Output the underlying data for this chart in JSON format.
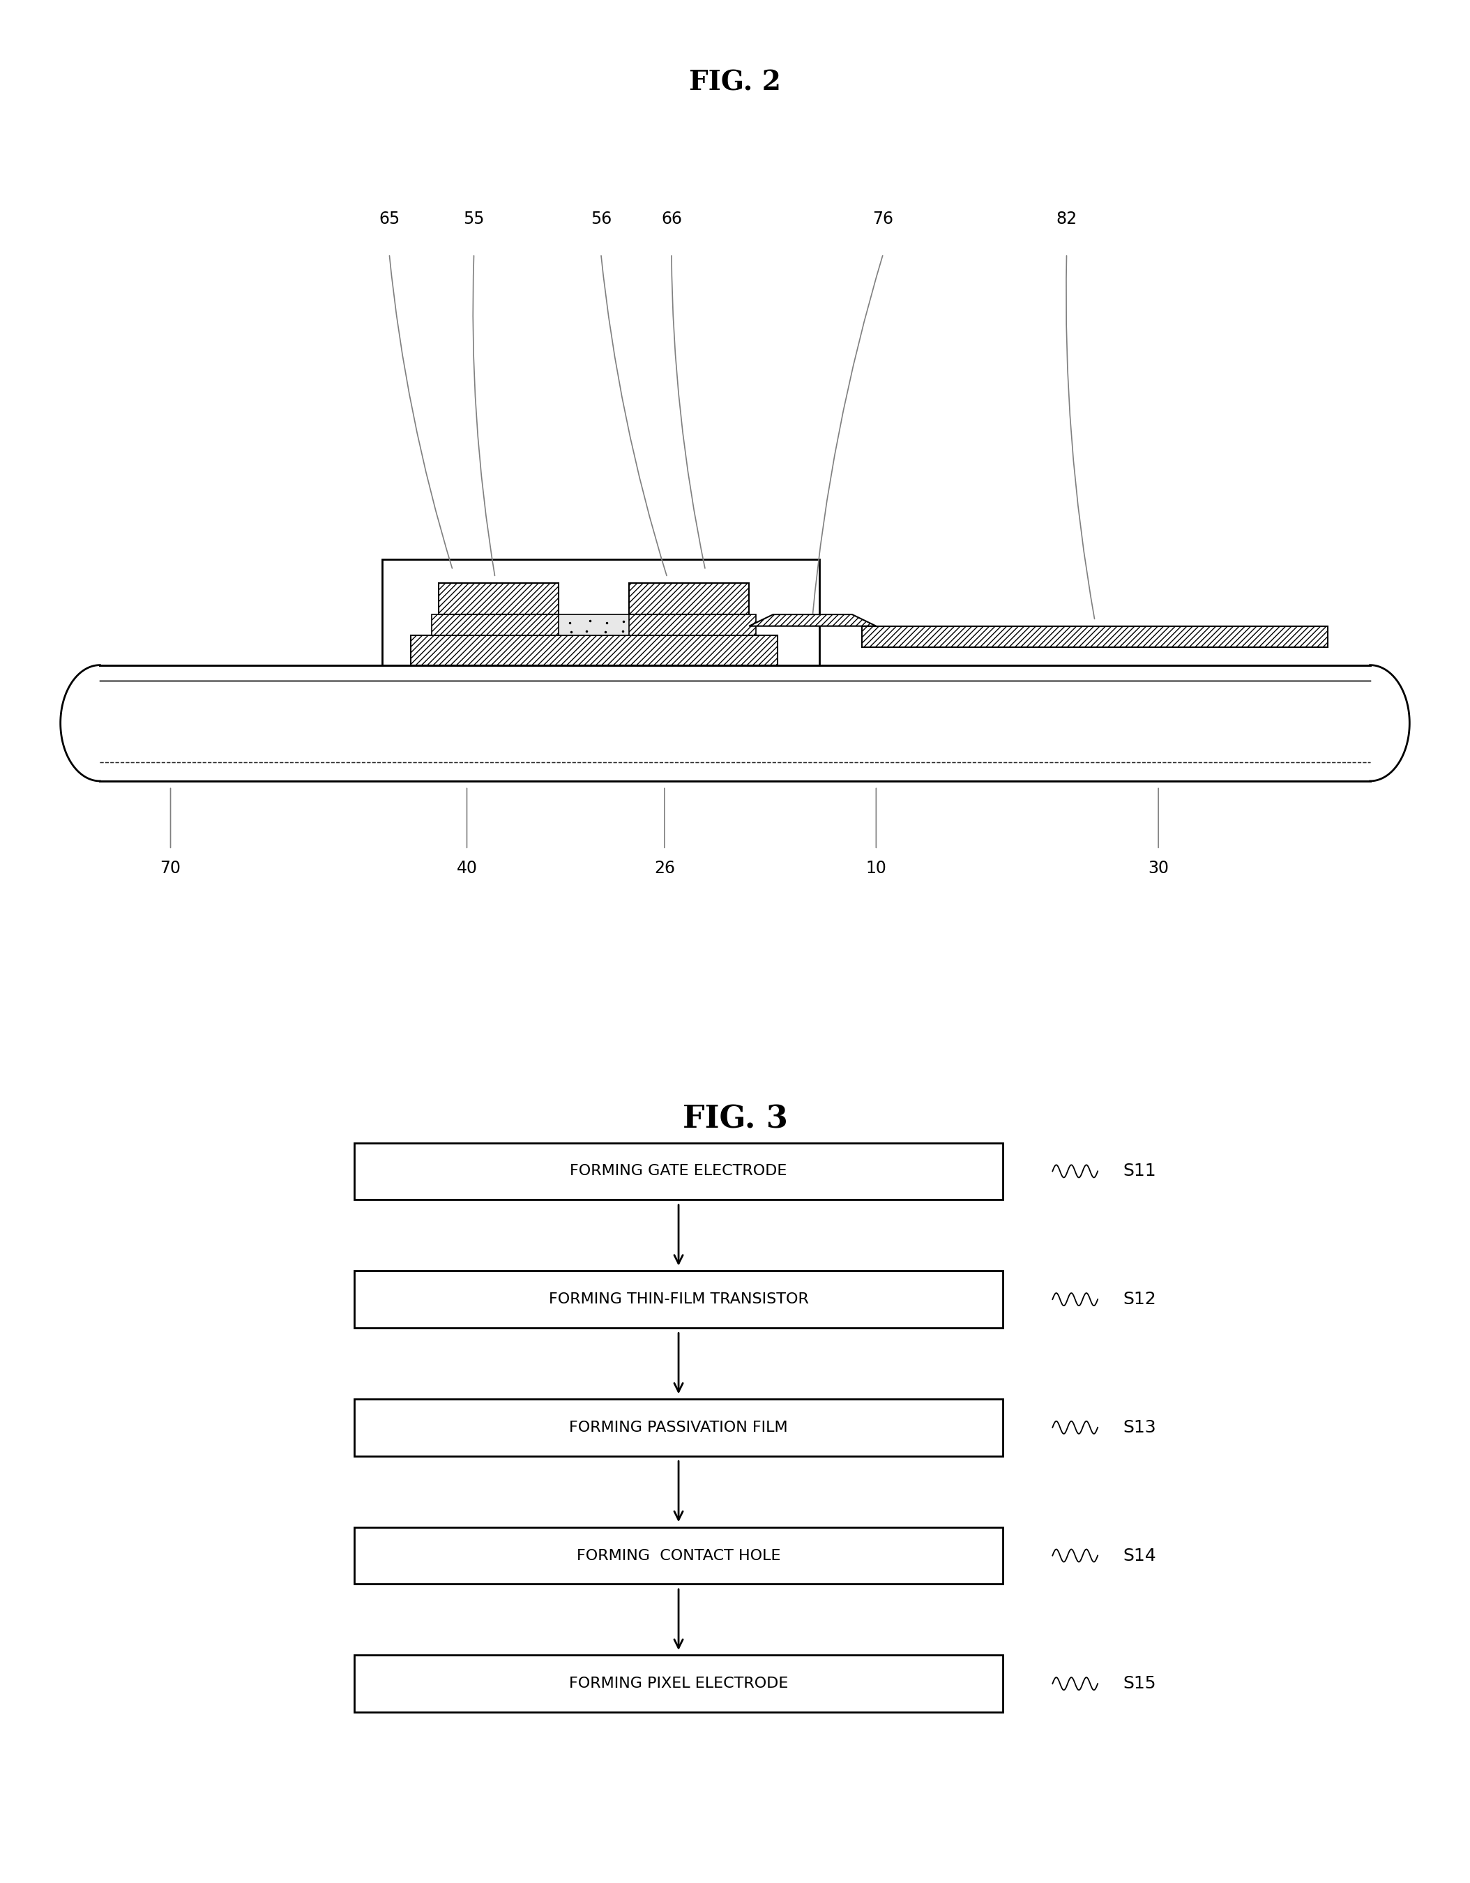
{
  "fig2_title": "FIG. 2",
  "fig3_title": "FIG. 3",
  "background_color": "#ffffff",
  "flow_steps": [
    {
      "label": "FORMING GATE ELECTRODE",
      "step": "S11"
    },
    {
      "label": "FORMING THIN-FILM TRANSISTOR",
      "step": "S12"
    },
    {
      "label": "FORMING PASSIVATION FILM",
      "step": "S13"
    },
    {
      "label": "FORMING  CONTACT HOLE",
      "step": "S14"
    },
    {
      "label": "FORMING PIXEL ELECTRODE",
      "step": "S15"
    }
  ],
  "top_labels": [
    "65",
    "55",
    "56",
    "66",
    "76",
    "82"
  ],
  "bottom_labels": [
    {
      "text": "70",
      "x": 1.0
    },
    {
      "text": "40",
      "x": 3.1
    },
    {
      "text": "26",
      "x": 4.5
    },
    {
      "text": "10",
      "x": 6.0
    },
    {
      "text": "30",
      "x": 8.0
    }
  ],
  "text_color": "#000000"
}
